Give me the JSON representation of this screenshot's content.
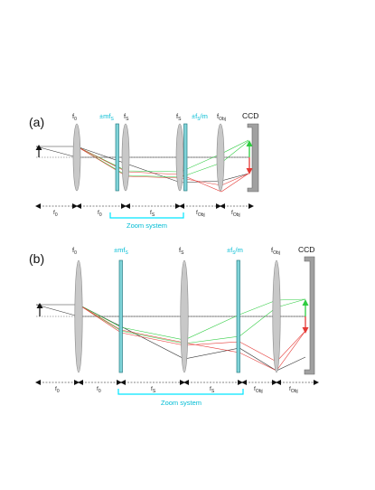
{
  "panel_a": {
    "label": "(a)",
    "lens_labels": [
      {
        "base": "f",
        "sub": "0",
        "tone": "dark"
      },
      {
        "base": "±mf",
        "sub": "S",
        "tone": "cyan"
      },
      {
        "base": "f",
        "sub": "S",
        "tone": "dark"
      },
      {
        "base": "f",
        "sub": "S",
        "tone": "dark"
      },
      {
        "base": "±f",
        "sub": "S",
        "suffix": "/m",
        "tone": "cyan"
      },
      {
        "base": "f",
        "sub": "Obj",
        "tone": "dark"
      }
    ],
    "ccd_label": "CCD",
    "distances": [
      {
        "base": "f",
        "sub": "0"
      },
      {
        "base": "f",
        "sub": "0"
      },
      {
        "base": "f",
        "sub": "S"
      },
      {
        "base": "f",
        "sub": "Obj"
      },
      {
        "base": "f",
        "sub": "Obj"
      }
    ],
    "zoom_label": "Zoom system"
  },
  "panel_b": {
    "label": "(b)",
    "lens_labels": [
      {
        "base": "f",
        "sub": "0",
        "tone": "dark"
      },
      {
        "base": "±mf",
        "sub": "S",
        "tone": "cyan"
      },
      {
        "base": "f",
        "sub": "S",
        "tone": "dark"
      },
      {
        "base": "±f",
        "sub": "S",
        "suffix": "/m",
        "tone": "cyan"
      },
      {
        "base": "f",
        "sub": "Obj",
        "tone": "dark"
      }
    ],
    "ccd_label": "CCD",
    "distances": [
      {
        "base": "f",
        "sub": "0"
      },
      {
        "base": "f",
        "sub": "0"
      },
      {
        "base": "f",
        "sub": "S"
      },
      {
        "base": "f",
        "sub": "S"
      },
      {
        "base": "f",
        "sub": "Obj"
      },
      {
        "base": "f",
        "sub": "Obj"
      }
    ],
    "zoom_label": "Zoom system"
  },
  "colors": {
    "lens_fill": "#c8c8c8",
    "lens_stroke": "#8a8a8a",
    "plate_fill": "#7fd3d8",
    "plate_stroke": "#2a7f86",
    "ccd_fill": "#a0a0a0",
    "ray_black": "#333333",
    "ray_green": "#2ecc40",
    "ray_red": "#e53935",
    "zoom_cyan": "#00e5ff"
  }
}
